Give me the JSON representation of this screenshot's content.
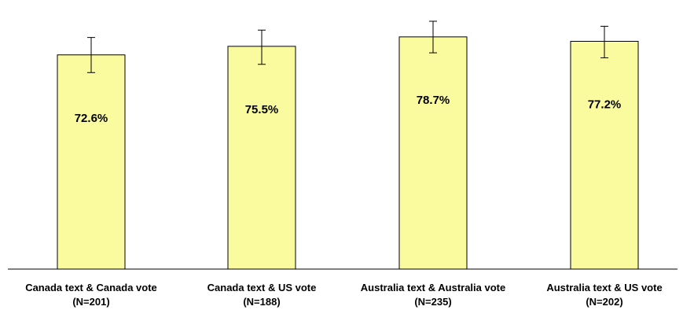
{
  "chart_data": {
    "type": "bar",
    "categories": [
      {
        "line1": "Canada text & Canada vote",
        "line2": "(N=201)"
      },
      {
        "line1": "Canada text & US vote",
        "line2": "(N=188)"
      },
      {
        "line1": "Australia text & Australia vote",
        "line2": "(N=235)"
      },
      {
        "line1": "Australia text & US vote",
        "line2": "(N=202)"
      }
    ],
    "values": [
      72.6,
      75.5,
      78.7,
      77.2
    ],
    "value_labels": [
      "72.6%",
      "75.5%",
      "78.7%",
      "77.2%"
    ],
    "error_bars": [
      {
        "low": 66.6,
        "high": 78.5
      },
      {
        "low": 69.4,
        "high": 81.0
      },
      {
        "low": 73.3,
        "high": 84.0
      },
      {
        "low": 71.6,
        "high": 82.3
      }
    ],
    "ylim": [
      0,
      85
    ],
    "title": "",
    "xlabel": "",
    "ylabel": "",
    "grid": false,
    "bar_color": "#fafa9e",
    "bar_edge_color": "#000000"
  }
}
